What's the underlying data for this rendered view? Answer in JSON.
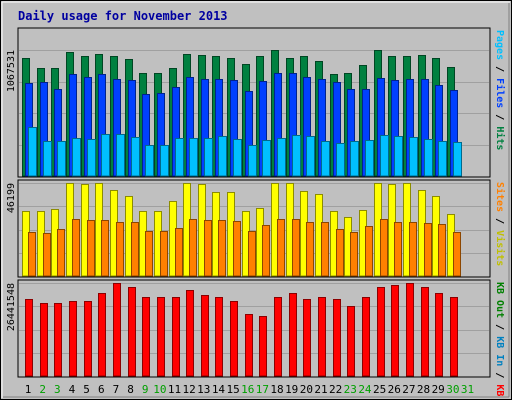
{
  "chart_data": {
    "type": "bar",
    "title": "Daily usage for November 2013",
    "days": [
      "1",
      "2",
      "3",
      "4",
      "5",
      "6",
      "7",
      "8",
      "9",
      "10",
      "11",
      "12",
      "13",
      "14",
      "15",
      "16",
      "17",
      "18",
      "19",
      "20",
      "21",
      "22",
      "23",
      "24",
      "25",
      "26",
      "27",
      "28",
      "29",
      "30",
      "31"
    ],
    "weekend_days": [
      "2",
      "3",
      "9",
      "10",
      "16",
      "17",
      "23",
      "24",
      "30",
      "31"
    ],
    "panels": [
      {
        "id": "requests",
        "ytick": "1067531",
        "ymax": 1067531,
        "legend": [
          {
            "label": "Hits",
            "color": "#008040"
          },
          {
            "label": "/",
            "color": "#000000"
          },
          {
            "label": "Files",
            "color": "#0040ff"
          },
          {
            "label": "/",
            "color": "#000000"
          },
          {
            "label": "Pages",
            "color": "#00c0ff"
          }
        ],
        "series": [
          {
            "name": "Hits",
            "color": "#008040",
            "values": [
              998000,
              917000,
              915000,
              1049000,
              1017000,
              1037000,
              1017000,
              994000,
              876000,
              876000,
              917000,
              1037000,
              1022000,
              1017000,
              996000,
              949000,
              1020000,
              1067531,
              1000000,
              1018000,
              978000,
              864000,
              874000,
              938000,
              1067531,
              1017000,
              1018000,
              1026000,
              1000000,
              923000,
              0
            ]
          },
          {
            "name": "Files",
            "color": "#0040ff",
            "values": [
              792000,
              798000,
              738000,
              868000,
              842000,
              866000,
              824000,
              813000,
              696000,
              706000,
              752000,
              837000,
              820000,
              822000,
              813000,
              716000,
              806000,
              874000,
              874000,
              837000,
              818000,
              798000,
              737000,
              741000,
              830000,
              811000,
              823000,
              818000,
              774000,
              727000,
              0
            ]
          },
          {
            "name": "Pages",
            "color": "#00c0ff",
            "values": [
              413000,
              300000,
              300000,
              323000,
              314000,
              358000,
              360000,
              334000,
              262000,
              262000,
              322000,
              324000,
              324000,
              336000,
              314000,
              262000,
              306000,
              323000,
              346000,
              338000,
              300000,
              280000,
              300000,
              306000,
              346000,
              339000,
              334000,
              313000,
              300000,
              288000,
              0
            ]
          }
        ]
      },
      {
        "id": "visits",
        "ytick": "46199",
        "ymax": 46199,
        "legend": [
          {
            "label": "Visits",
            "color": "#c0c000"
          },
          {
            "label": "/",
            "color": "#000000"
          },
          {
            "label": "Sites",
            "color": "#ff8000"
          }
        ],
        "series": [
          {
            "name": "Visits",
            "color": "#ffff00",
            "values": [
              32100,
              32100,
              33400,
              46000,
              45500,
              46000,
              42500,
              39800,
              32100,
              32400,
              37400,
              46199,
              45500,
              41700,
              41500,
              32100,
              33700,
              46000,
              46000,
              42300,
              40700,
              32400,
              29500,
              32700,
              46000,
              45500,
              46000,
              42500,
              39800,
              30900,
              0
            ]
          },
          {
            "name": "Sites",
            "color": "#ff8000",
            "values": [
              21800,
              21300,
              23300,
              28100,
              28000,
              27700,
              26700,
              26700,
              22300,
              22300,
              23600,
              28100,
              27700,
              28000,
              27300,
              22300,
              25400,
              28500,
              28100,
              26700,
              26700,
              23300,
              21800,
              24800,
              28500,
              26700,
              26700,
              26200,
              25800,
              21800,
              0
            ]
          }
        ]
      },
      {
        "id": "traffic",
        "ytick": "26441548",
        "ymax": 26441548,
        "legend": [
          {
            "label": "KB F",
            "color": "#ff0000"
          },
          {
            "label": "/",
            "color": "#000000"
          },
          {
            "label": "KB In",
            "color": "#0080c0"
          },
          {
            "label": "/",
            "color": "#000000"
          },
          {
            "label": "KB Out",
            "color": "#008000"
          }
        ],
        "series": [
          {
            "name": "KB F",
            "color": "#ff0000",
            "values": [
              21939000,
              20853000,
              20853000,
              21396000,
              21396000,
              23567000,
              26441548,
              25355000,
              22481000,
              22481000,
              22481000,
              24412000,
              23024000,
              22481000,
              21396000,
              17597000,
              17054000,
              22481000,
              23567000,
              21939000,
              22481000,
              21939000,
              19768000,
              22481000,
              25355000,
              25898000,
              26441548,
              25355000,
              23567000,
              22481000,
              0
            ]
          }
        ]
      }
    ]
  }
}
